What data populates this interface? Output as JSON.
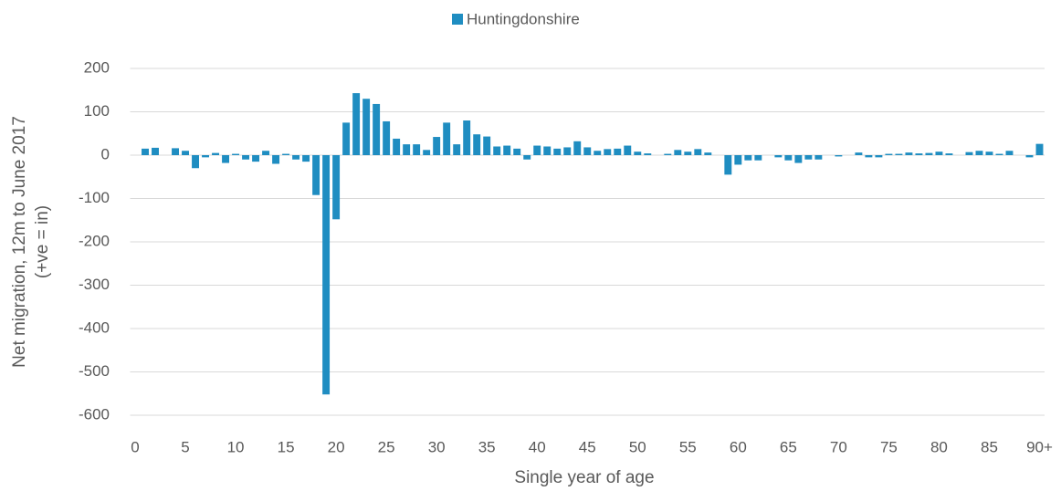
{
  "chart_data": {
    "type": "bar",
    "legend": "top",
    "xlabel": "Single year of age",
    "ylabel": [
      "Net migration, 12m to June 2017",
      "(+ve = in)"
    ],
    "series": [
      {
        "name": "Huntingdonshire",
        "color": "#1f8dc1",
        "values": [
          0,
          15,
          17,
          0,
          16,
          10,
          -30,
          -5,
          5,
          -18,
          3,
          -10,
          -15,
          10,
          -20,
          3,
          -10,
          -15,
          -92,
          -552,
          -148,
          75,
          143,
          130,
          118,
          78,
          38,
          25,
          25,
          12,
          42,
          75,
          25,
          80,
          48,
          43,
          20,
          22,
          15,
          -10,
          22,
          20,
          15,
          18,
          32,
          18,
          10,
          14,
          15,
          22,
          8,
          4,
          0,
          3,
          12,
          8,
          14,
          6,
          0,
          -45,
          -22,
          -12,
          -12,
          0,
          -5,
          -12,
          -18,
          -10,
          -10,
          0,
          -3,
          0,
          6,
          -5,
          -5,
          3,
          3,
          6,
          4,
          5,
          8,
          4,
          0,
          7,
          10,
          8,
          3,
          10,
          0,
          -5,
          26
        ]
      }
    ],
    "categories": [
      "0",
      null,
      null,
      null,
      null,
      "5",
      null,
      null,
      null,
      null,
      "10",
      null,
      null,
      null,
      null,
      "15",
      null,
      null,
      null,
      null,
      "20",
      null,
      null,
      null,
      null,
      "25",
      null,
      null,
      null,
      null,
      "30",
      null,
      null,
      null,
      null,
      "35",
      null,
      null,
      null,
      null,
      "40",
      null,
      null,
      null,
      null,
      "45",
      null,
      null,
      null,
      null,
      "50",
      null,
      null,
      null,
      null,
      "55",
      null,
      null,
      null,
      null,
      "60",
      null,
      null,
      null,
      null,
      "65",
      null,
      null,
      null,
      null,
      "70",
      null,
      null,
      null,
      null,
      "75",
      null,
      null,
      null,
      null,
      "80",
      null,
      null,
      null,
      null,
      "85",
      null,
      null,
      null,
      null,
      "90+"
    ],
    "ylim": [
      -600,
      200
    ],
    "yticks": [
      -600,
      -500,
      -400,
      -300,
      -200,
      -100,
      0,
      100,
      200
    ],
    "grid": true
  }
}
